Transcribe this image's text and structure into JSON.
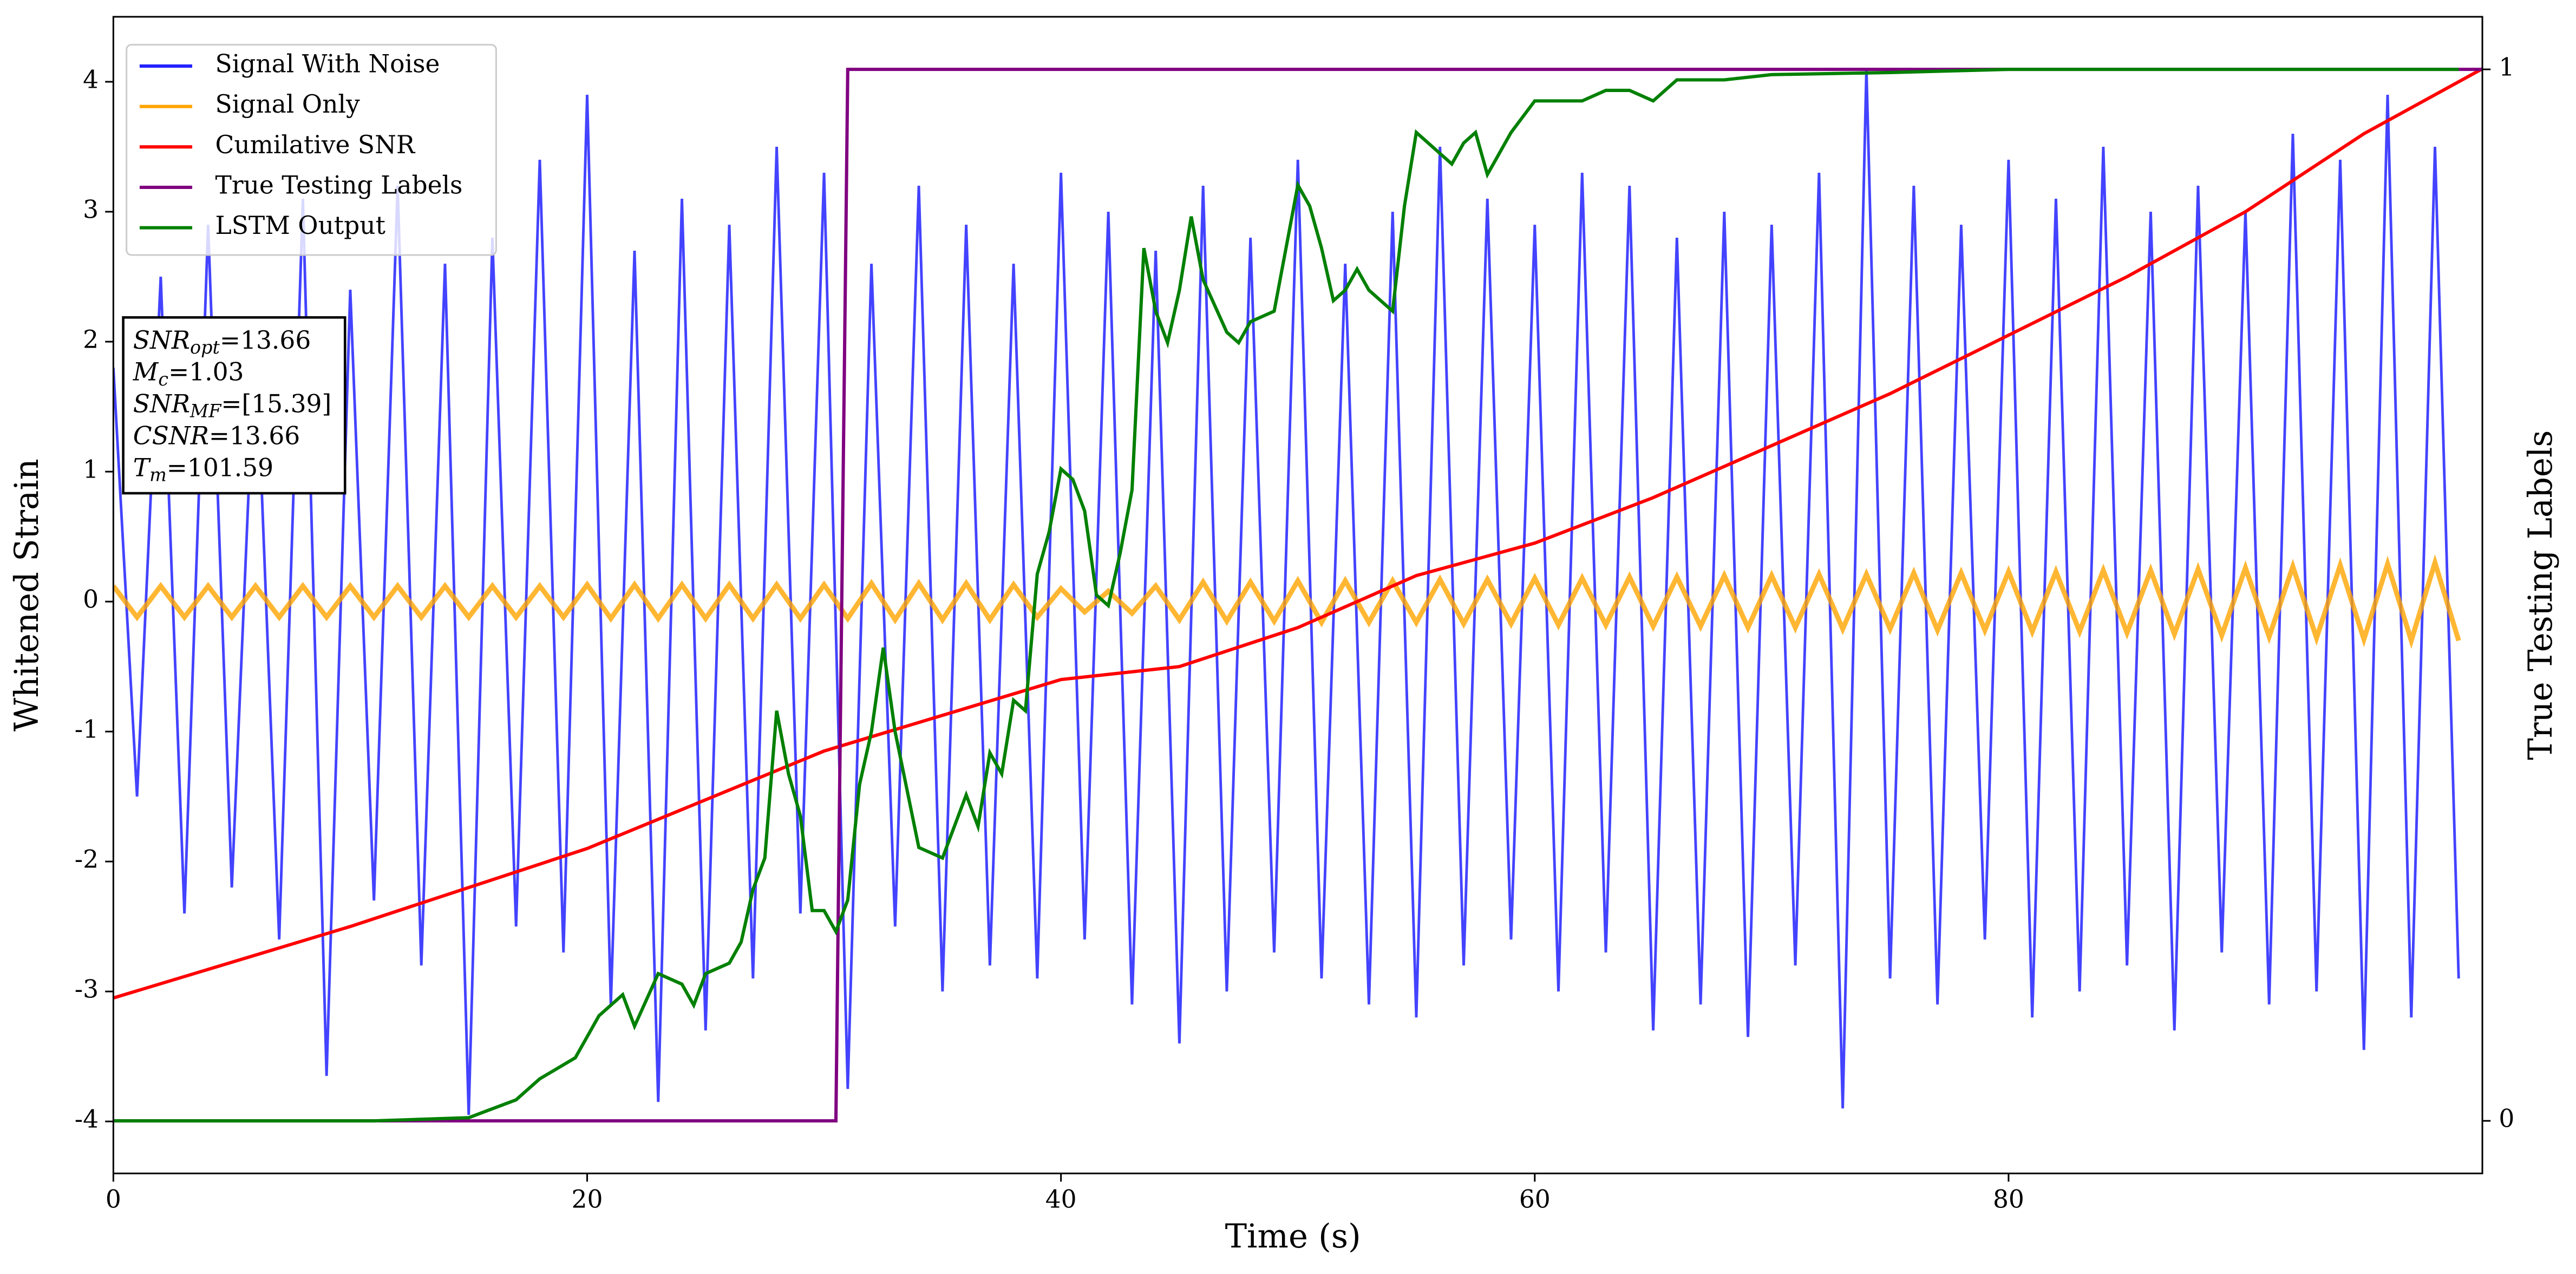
{
  "chart_data": {
    "type": "line",
    "xlabel": "Time (s)",
    "ylabel": "Whitened Strain",
    "y2label": "True Testing Labels",
    "xlim": [
      0,
      100
    ],
    "xticks": [
      0,
      20,
      40,
      60,
      80
    ],
    "ylim": [
      -4.4,
      4.5
    ],
    "yticks": [
      -4,
      -3,
      -2,
      -1,
      0,
      1,
      2,
      3,
      4
    ],
    "y2lim": [
      -0.05,
      1.05
    ],
    "y2ticks": [
      0,
      1
    ],
    "legend": "upper left",
    "x": [
      0,
      1,
      2,
      3,
      4,
      5,
      6,
      7,
      8,
      9,
      10,
      11,
      12,
      13,
      14,
      15,
      16,
      17,
      18,
      19,
      20,
      21,
      22,
      23,
      24,
      25,
      26,
      27,
      28,
      29,
      30,
      31,
      32,
      33,
      34,
      35,
      36,
      37,
      38,
      39,
      40,
      41,
      42,
      43,
      44,
      45,
      46,
      47,
      48,
      49,
      50,
      51,
      52,
      53,
      54,
      55,
      56,
      57,
      58,
      59,
      60,
      61,
      62,
      63,
      64,
      65,
      66,
      67,
      68,
      69,
      70,
      71,
      72,
      73,
      74,
      75,
      76,
      77,
      78,
      79,
      80,
      81,
      82,
      83,
      84,
      85,
      86,
      87,
      88,
      89,
      90,
      91,
      92,
      93,
      94,
      95,
      96,
      97,
      98,
      99
    ],
    "series": [
      {
        "name": "Signal With Noise",
        "color": "#2222ff",
        "values": [
          1.8,
          -1.5,
          2.5,
          -2.4,
          2.9,
          -2.2,
          2.1,
          -2.6,
          3.1,
          -3.65,
          2.4,
          -2.3,
          3.2,
          -2.8,
          2.6,
          -3.95,
          2.8,
          -2.5,
          3.4,
          -2.7,
          3.9,
          -3.1,
          2.7,
          -3.85,
          3.1,
          -3.3,
          2.9,
          -2.9,
          3.5,
          -2.4,
          3.3,
          -3.75,
          2.6,
          -2.5,
          3.2,
          -3.0,
          2.9,
          -2.8,
          2.6,
          -2.9,
          3.3,
          -2.6,
          3.0,
          -3.1,
          2.7,
          -3.4,
          3.2,
          -3.0,
          2.8,
          -2.7,
          3.4,
          -2.9,
          2.6,
          -3.1,
          3.0,
          -3.2,
          3.5,
          -2.8,
          3.1,
          -2.6,
          2.9,
          -3.0,
          3.3,
          -2.7,
          3.2,
          -3.3,
          2.8,
          -3.1,
          3.0,
          -3.35,
          2.9,
          -2.8,
          3.3,
          -3.9,
          4.1,
          -2.9,
          3.2,
          -3.1,
          2.9,
          -2.6,
          3.4,
          -3.2,
          3.1,
          -3.0,
          3.5,
          -2.8,
          3.0,
          -3.3,
          3.2,
          -2.7,
          3.0,
          -3.1,
          3.6,
          -3.0,
          3.4,
          -3.45,
          3.9,
          -3.2,
          3.5,
          -2.9
        ]
      },
      {
        "name": "Signal Only",
        "color": "#ffa500",
        "values": [
          0.12,
          -0.12,
          0.12,
          -0.12,
          0.12,
          -0.12,
          0.12,
          -0.12,
          0.12,
          -0.12,
          0.12,
          -0.12,
          0.12,
          -0.12,
          0.12,
          -0.12,
          0.12,
          -0.12,
          0.12,
          -0.12,
          0.13,
          -0.13,
          0.13,
          -0.13,
          0.13,
          -0.13,
          0.13,
          -0.13,
          0.13,
          -0.13,
          0.13,
          -0.13,
          0.14,
          -0.14,
          0.14,
          -0.14,
          0.14,
          -0.14,
          0.13,
          -0.12,
          0.1,
          -0.08,
          0.08,
          -0.09,
          0.12,
          -0.14,
          0.15,
          -0.15,
          0.15,
          -0.15,
          0.16,
          -0.16,
          0.16,
          -0.16,
          0.16,
          -0.16,
          0.17,
          -0.17,
          0.17,
          -0.17,
          0.18,
          -0.18,
          0.18,
          -0.18,
          0.19,
          -0.19,
          0.19,
          -0.19,
          0.2,
          -0.2,
          0.2,
          -0.2,
          0.21,
          -0.21,
          0.21,
          -0.21,
          0.22,
          -0.22,
          0.22,
          -0.22,
          0.23,
          -0.23,
          0.23,
          -0.23,
          0.24,
          -0.24,
          0.24,
          -0.25,
          0.25,
          -0.26,
          0.26,
          -0.27,
          0.27,
          -0.28,
          0.28,
          -0.29,
          0.29,
          -0.3,
          0.3,
          -0.3
        ]
      },
      {
        "name": "Cumilative SNR",
        "color": "#ff0000",
        "x": [
          0,
          10,
          20,
          30,
          40,
          45,
          50,
          55,
          60,
          65,
          70,
          75,
          80,
          85,
          90,
          95,
          100
        ],
        "values": [
          -3.05,
          -2.5,
          -1.9,
          -1.15,
          -0.6,
          -0.5,
          -0.2,
          0.2,
          0.45,
          0.8,
          1.2,
          1.6,
          2.05,
          2.5,
          3.0,
          3.6,
          4.1
        ]
      },
      {
        "name": "True Testing Labels",
        "color": "#800080",
        "axis": "y2",
        "x": [
          0,
          30.5,
          31,
          100
        ],
        "values": [
          0,
          0,
          1,
          1
        ]
      },
      {
        "name": "LSTM Output",
        "color": "#008000",
        "axis": "y2",
        "x": [
          0,
          11,
          15,
          17,
          18,
          19.5,
          20.5,
          21.5,
          22,
          23,
          24,
          24.5,
          25,
          26,
          26.5,
          27,
          27.5,
          28,
          28.5,
          29,
          29.5,
          30,
          30.5,
          31,
          31.5,
          32,
          32.5,
          33,
          34,
          35,
          35.5,
          36,
          36.5,
          37,
          37.5,
          38,
          38.5,
          39,
          39.5,
          40,
          40.5,
          41,
          41.5,
          42,
          42.5,
          43,
          43.5,
          44,
          44.5,
          45,
          45.5,
          46,
          47,
          47.5,
          48,
          49,
          50,
          50.5,
          51,
          51.5,
          52,
          52.5,
          53,
          54,
          54.5,
          55,
          56,
          56.5,
          57,
          57.5,
          58,
          58.5,
          59,
          60,
          61,
          62,
          63,
          64,
          65,
          66,
          68,
          70,
          75,
          80,
          90,
          99
        ],
        "values": [
          0,
          0,
          0.003,
          0.02,
          0.04,
          0.06,
          0.1,
          0.12,
          0.09,
          0.14,
          0.13,
          0.11,
          0.14,
          0.15,
          0.17,
          0.22,
          0.25,
          0.39,
          0.33,
          0.29,
          0.2,
          0.2,
          0.18,
          0.21,
          0.32,
          0.37,
          0.45,
          0.37,
          0.26,
          0.25,
          0.28,
          0.31,
          0.28,
          0.35,
          0.33,
          0.4,
          0.39,
          0.52,
          0.56,
          0.62,
          0.61,
          0.58,
          0.5,
          0.49,
          0.54,
          0.6,
          0.83,
          0.77,
          0.74,
          0.79,
          0.86,
          0.8,
          0.75,
          0.74,
          0.76,
          0.77,
          0.89,
          0.87,
          0.83,
          0.78,
          0.79,
          0.81,
          0.79,
          0.77,
          0.87,
          0.94,
          0.92,
          0.91,
          0.93,
          0.94,
          0.9,
          0.92,
          0.94,
          0.97,
          0.97,
          0.97,
          0.98,
          0.98,
          0.97,
          0.99,
          0.99,
          0.995,
          0.997,
          1,
          1,
          1
        ]
      }
    ],
    "annotation": [
      {
        "symbol": "SNR",
        "sub": "opt",
        "text": "=13.66"
      },
      {
        "symbol": "M",
        "sub": "c",
        "text": "=1.03"
      },
      {
        "symbol": "SNR",
        "sub": "MF",
        "text": "=[15.39]"
      },
      {
        "symbol": "CSNR",
        "text": "=13.66"
      },
      {
        "symbol": "T",
        "sub": "m",
        "text": "=101.59"
      }
    ]
  }
}
